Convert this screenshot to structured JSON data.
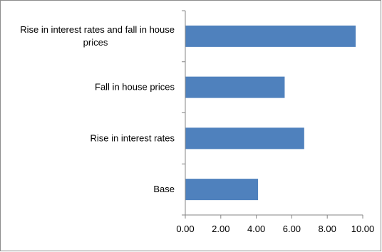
{
  "chart_data": {
    "type": "bar",
    "orientation": "horizontal",
    "categories": [
      [
        "Rise in interest rates and fall in house",
        "prices"
      ],
      [
        "Fall in house prices"
      ],
      [
        "Rise in interest rates"
      ],
      [
        "Base"
      ]
    ],
    "values": [
      9.6,
      5.6,
      6.7,
      4.1
    ],
    "xlim": [
      0,
      10
    ],
    "xticks": [
      "0.00",
      "2.00",
      "4.00",
      "6.00",
      "8.00",
      "10.00"
    ],
    "title": "",
    "xlabel": "",
    "ylabel": "",
    "grid": false,
    "bar_color": "#4f81bd",
    "axis_color": "#868686"
  }
}
